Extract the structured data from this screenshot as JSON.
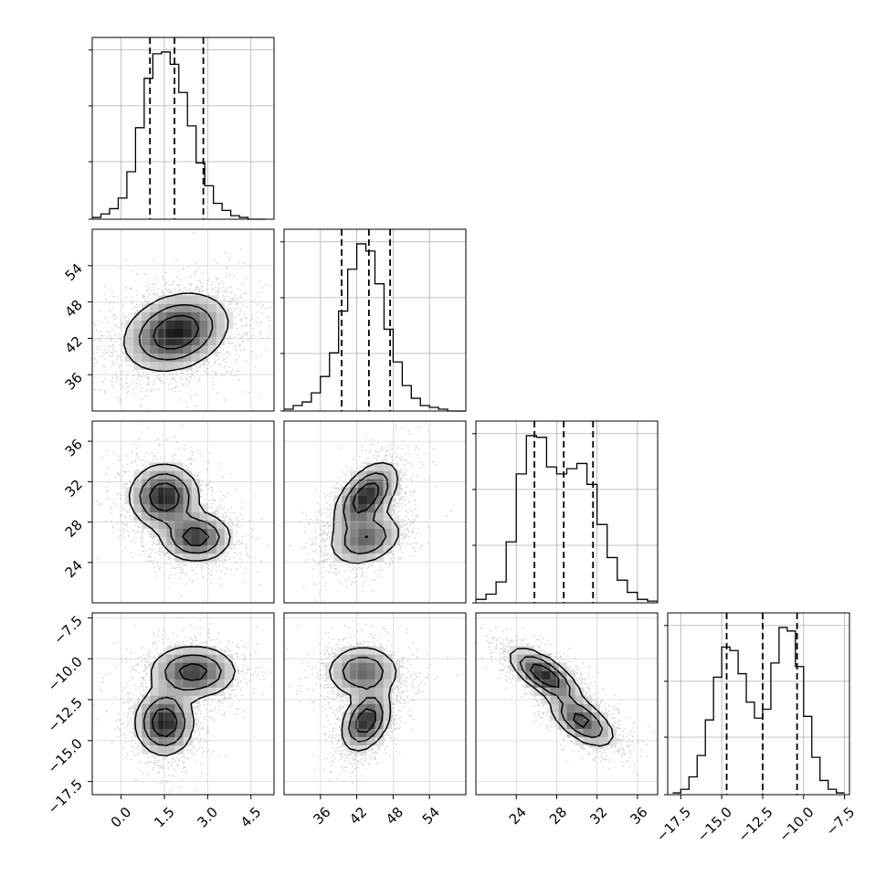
{
  "chart_data": {
    "type": "corner",
    "n_params": 4,
    "ranges": [
      [
        -1.0,
        5.3
      ],
      [
        30.0,
        60.0
      ],
      [
        20.0,
        38.0
      ],
      [
        -18.3,
        -7.2
      ]
    ],
    "ticks": [
      {
        "values": [
          0.0,
          1.5,
          3.0,
          4.5
        ],
        "labels": [
          "0.0",
          "1.5",
          "3.0",
          "4.5"
        ]
      },
      {
        "values": [
          36,
          42,
          48,
          54
        ],
        "labels": [
          "36",
          "42",
          "48",
          "54"
        ]
      },
      {
        "values": [
          24,
          28,
          32,
          36
        ],
        "labels": [
          "24",
          "28",
          "32",
          "36"
        ]
      },
      {
        "values": [
          -17.5,
          -15.0,
          -12.5,
          -10.0,
          -7.5
        ],
        "labels": [
          "−17.5",
          "−15.0",
          "−12.5",
          "−10.0",
          "−7.5"
        ]
      }
    ],
    "quantiles": [
      [
        1.0,
        1.85,
        2.85
      ],
      [
        39.5,
        44.0,
        47.5
      ],
      [
        25.8,
        28.7,
        31.6
      ],
      [
        -14.7,
        -12.5,
        -10.4
      ]
    ],
    "histograms": [
      {
        "bin_edges_range": [
          -1.0,
          5.0
        ],
        "counts": [
          1,
          3,
          6,
          12,
          27,
          52,
          80,
          94,
          95,
          88,
          72,
          53,
          32,
          19,
          9,
          5,
          2,
          1,
          0,
          0
        ]
      },
      {
        "bin_edges_range": [
          30.0,
          60.0
        ],
        "counts": [
          1,
          3,
          5,
          10,
          19,
          32,
          55,
          78,
          92,
          88,
          70,
          45,
          27,
          14,
          7,
          3,
          2,
          1,
          0,
          0
        ]
      },
      {
        "bin_edges_range": [
          20.0,
          38.0
        ],
        "counts": [
          2,
          5,
          12,
          35,
          74,
          96,
          95,
          78,
          74,
          77,
          80,
          68,
          45,
          26,
          13,
          6,
          2,
          1
        ]
      },
      {
        "bin_edges_range": [
          -18.0,
          -7.5
        ],
        "counts": [
          1,
          3,
          10,
          22,
          42,
          66,
          83,
          81,
          68,
          52,
          43,
          48,
          74,
          94,
          92,
          72,
          44,
          21,
          8,
          3,
          1
        ]
      }
    ],
    "grid": true,
    "density_panels": [
      {
        "x_param": 0,
        "y_param": 1,
        "modes": [
          {
            "mx": 1.9,
            "my": 43.0,
            "sx": 0.9,
            "sy": 3.2,
            "w": 1.0,
            "rho": 0.25
          }
        ]
      },
      {
        "x_param": 0,
        "y_param": 2,
        "modes": [
          {
            "mx": 1.5,
            "my": 30.5,
            "sx": 0.6,
            "sy": 1.6,
            "w": 1.0,
            "rho": 0.0
          },
          {
            "mx": 2.6,
            "my": 26.5,
            "sx": 0.6,
            "sy": 1.2,
            "w": 0.9,
            "rho": 0.0
          }
        ]
      },
      {
        "x_param": 1,
        "y_param": 2,
        "modes": [
          {
            "mx": 43.5,
            "my": 30.5,
            "sx": 2.6,
            "sy": 1.7,
            "w": 1.0,
            "rho": 0.55
          },
          {
            "mx": 43.5,
            "my": 26.3,
            "sx": 3.0,
            "sy": 1.3,
            "w": 0.7,
            "rho": 0.3
          }
        ]
      },
      {
        "x_param": 0,
        "y_param": 3,
        "modes": [
          {
            "mx": 1.5,
            "my": -13.9,
            "sx": 0.5,
            "sy": 1.0,
            "w": 1.0,
            "rho": 0.0
          },
          {
            "mx": 2.5,
            "my": -10.8,
            "sx": 0.75,
            "sy": 0.8,
            "w": 0.85,
            "rho": 0.0
          }
        ]
      },
      {
        "x_param": 1,
        "y_param": 3,
        "modes": [
          {
            "mx": 43.5,
            "my": -13.8,
            "sx": 2.0,
            "sy": 0.9,
            "w": 1.0,
            "rho": 0.35
          },
          {
            "mx": 43.0,
            "my": -10.8,
            "sx": 3.0,
            "sy": 0.8,
            "w": 0.7,
            "rho": 0.0
          }
        ]
      },
      {
        "x_param": 2,
        "y_param": 3,
        "modes": [
          {
            "mx": 26.8,
            "my": -11.0,
            "sx": 1.7,
            "sy": 0.8,
            "w": 1.0,
            "rho": -0.7
          },
          {
            "mx": 30.5,
            "my": -13.8,
            "sx": 1.6,
            "sy": 0.8,
            "w": 0.8,
            "rho": -0.6
          }
        ]
      }
    ]
  }
}
